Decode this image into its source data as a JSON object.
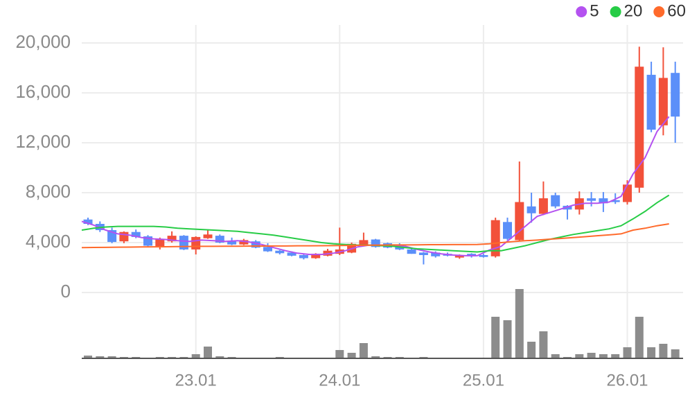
{
  "chart_data": {
    "type": "candlestick",
    "categories": [
      null,
      null,
      null,
      null,
      null,
      null,
      null,
      null,
      null,
      "23.01",
      null,
      null,
      null,
      null,
      null,
      null,
      null,
      null,
      null,
      null,
      null,
      "24.01",
      null,
      null,
      null,
      null,
      null,
      null,
      null,
      null,
      null,
      null,
      null,
      "25.01",
      null,
      null,
      null,
      null,
      null,
      null,
      null,
      null,
      null,
      null,
      null,
      "26.01",
      null,
      null,
      null,
      null
    ],
    "open": [
      5850,
      5500,
      5000,
      4100,
      4850,
      4500,
      3700,
      4100,
      4550,
      3450,
      4350,
      4550,
      4100,
      3850,
      4100,
      3650,
      3350,
      3200,
      3000,
      2750,
      2950,
      3100,
      3200,
      3800,
      4250,
      3950,
      3800,
      3450,
      3200,
      3200,
      3100,
      2800,
      3100,
      3000,
      2900,
      5650,
      4200,
      6900,
      6300,
      7800,
      6950,
      6650,
      7550,
      7550,
      7400,
      7250,
      8400,
      17450,
      13400,
      17600
    ],
    "high": [
      6000,
      5700,
      5200,
      4900,
      5050,
      4600,
      4400,
      4900,
      4600,
      4500,
      5000,
      4650,
      4400,
      4300,
      4200,
      3950,
      3400,
      3300,
      3050,
      3150,
      3500,
      5200,
      4000,
      4800,
      4300,
      4000,
      3950,
      3500,
      3250,
      3300,
      3200,
      3050,
      3150,
      3100,
      6000,
      6000,
      10500,
      8000,
      8900,
      8000,
      7000,
      8100,
      8050,
      8050,
      7950,
      9000,
      19700,
      18500,
      19650,
      18500
    ],
    "low": [
      5400,
      4850,
      3950,
      3950,
      4350,
      3700,
      3450,
      4000,
      3400,
      3050,
      4300,
      3950,
      3800,
      3800,
      3550,
      3250,
      3050,
      2900,
      2650,
      2700,
      2900,
      3000,
      3150,
      3750,
      3600,
      3550,
      3400,
      3100,
      2250,
      2800,
      2900,
      2700,
      2800,
      2800,
      2800,
      4200,
      4100,
      5600,
      6200,
      6750,
      5850,
      6250,
      6900,
      6450,
      7100,
      7050,
      8000,
      12850,
      12600,
      12000
    ],
    "close": [
      5500,
      5000,
      4050,
      4850,
      4450,
      3750,
      4250,
      4550,
      3450,
      4450,
      4650,
      4000,
      3850,
      4200,
      3600,
      3300,
      3150,
      2950,
      2750,
      3100,
      3350,
      3450,
      3900,
      4200,
      3650,
      3600,
      3450,
      3100,
      3000,
      2900,
      2950,
      3000,
      2900,
      2850,
      5800,
      4300,
      7250,
      6350,
      7550,
      6900,
      6650,
      7550,
      7350,
      7150,
      7250,
      8650,
      18100,
      13050,
      17200,
      14100
    ],
    "up_color": "#f2513a",
    "down_color": "#5b8ff9",
    "volume": {
      "color": "#8c8c8c",
      "values": [
        4,
        3,
        3,
        2,
        2,
        1,
        2,
        2,
        2,
        6,
        17,
        3,
        2,
        1,
        1,
        1,
        2,
        1,
        1,
        1,
        1,
        12,
        8,
        22,
        3,
        2,
        2,
        1,
        2,
        1,
        1,
        1,
        1,
        1,
        60,
        55,
        100,
        24,
        39,
        6,
        2,
        6,
        8,
        6,
        6,
        16,
        60,
        16,
        21,
        13
      ]
    },
    "series": [
      {
        "name": "5",
        "color": "#b452f0",
        "values": [
          5700,
          5400,
          5000,
          4700,
          4600,
          4400,
          4300,
          4250,
          4150,
          4100,
          4200,
          4150,
          4100,
          4150,
          4050,
          3850,
          3600,
          3350,
          3150,
          3050,
          3050,
          3150,
          3350,
          3650,
          3800,
          3800,
          3750,
          3700,
          3450,
          3250,
          3100,
          3000,
          2950,
          2950,
          3400,
          3700,
          4500,
          5300,
          6100,
          6400,
          6700,
          7000,
          7150,
          7150,
          7250,
          7700,
          9500,
          10800,
          12900,
          14100
        ]
      },
      {
        "name": "20",
        "color": "#27cc46",
        "values": [
          5000,
          5150,
          5250,
          5300,
          5300,
          5300,
          5300,
          5250,
          5150,
          5100,
          5050,
          5000,
          4950,
          4900,
          4800,
          4700,
          4600,
          4450,
          4300,
          4150,
          4000,
          3900,
          3850,
          3800,
          3800,
          3750,
          3700,
          3600,
          3500,
          3450,
          3400,
          3350,
          3300,
          3250,
          3350,
          3350,
          3550,
          3750,
          4000,
          4250,
          4450,
          4650,
          4800,
          4950,
          5100,
          5350,
          5900,
          6500,
          7200,
          7800
        ]
      },
      {
        "name": "60",
        "color": "#ff6a2b",
        "values": [
          3600,
          3610,
          3620,
          3630,
          3640,
          3650,
          3660,
          3670,
          3680,
          3690,
          3700,
          3700,
          3710,
          3710,
          3720,
          3720,
          3730,
          3730,
          3740,
          3740,
          3750,
          3760,
          3770,
          3780,
          3790,
          3800,
          3810,
          3810,
          3820,
          3830,
          3830,
          3840,
          3840,
          3850,
          3900,
          4000,
          4080,
          4150,
          4200,
          4270,
          4330,
          4400,
          4470,
          4550,
          4620,
          4700,
          5000,
          5150,
          5350,
          5500
        ]
      }
    ],
    "ylim": [
      0,
      20000
    ],
    "yticks": [
      {
        "value": 0,
        "label": "0"
      },
      {
        "value": 4000,
        "label": "4,000"
      },
      {
        "value": 8000,
        "label": "8,000"
      },
      {
        "value": 12000,
        "label": "12,000"
      },
      {
        "value": 16000,
        "label": "16,000"
      },
      {
        "value": 20000,
        "label": "20,000"
      }
    ],
    "grid": true,
    "legend": "top-right"
  }
}
